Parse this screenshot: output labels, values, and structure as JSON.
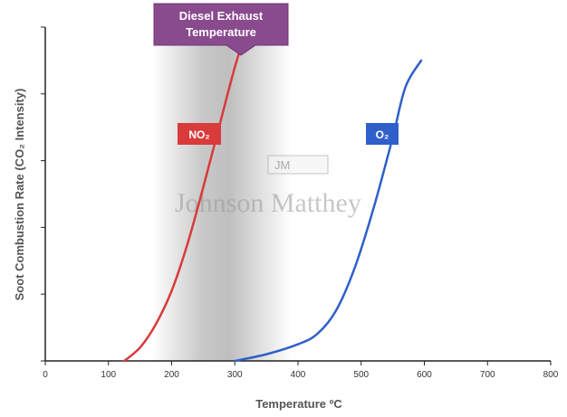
{
  "chart_data": {
    "type": "line",
    "xlabel": "Temperature ºC",
    "ylabel": "Soot Combustion Rate  (CO₂ Intensity)",
    "xlim": [
      0,
      800
    ],
    "ylim": [
      0,
      5
    ],
    "x_ticks": [
      "0",
      "100",
      "200",
      "300",
      "400",
      "500",
      "600",
      "700",
      "800"
    ],
    "y_ticks_labeled": false,
    "grid": false,
    "shaded_band": {
      "x_range": [
        170,
        390
      ],
      "label": "Diesel Exhaust Temperature",
      "color": "#8a4a8e"
    },
    "series": [
      {
        "name": "NO₂",
        "color": "#d93a3a",
        "x": [
          125,
          150,
          175,
          200,
          225,
          250,
          275,
          300,
          320
        ],
        "y": [
          0.0,
          0.2,
          0.55,
          1.05,
          1.75,
          2.6,
          3.5,
          4.4,
          5.0
        ]
      },
      {
        "name": "O₂",
        "color": "#2f5fc9",
        "x": [
          300,
          350,
          400,
          430,
          460,
          490,
          520,
          550,
          570,
          595
        ],
        "y": [
          0.0,
          0.1,
          0.25,
          0.4,
          0.75,
          1.4,
          2.3,
          3.35,
          4.1,
          4.5
        ]
      }
    ]
  },
  "watermark": {
    "logo_text": "JM",
    "company_text": "Johnson Matthey"
  }
}
